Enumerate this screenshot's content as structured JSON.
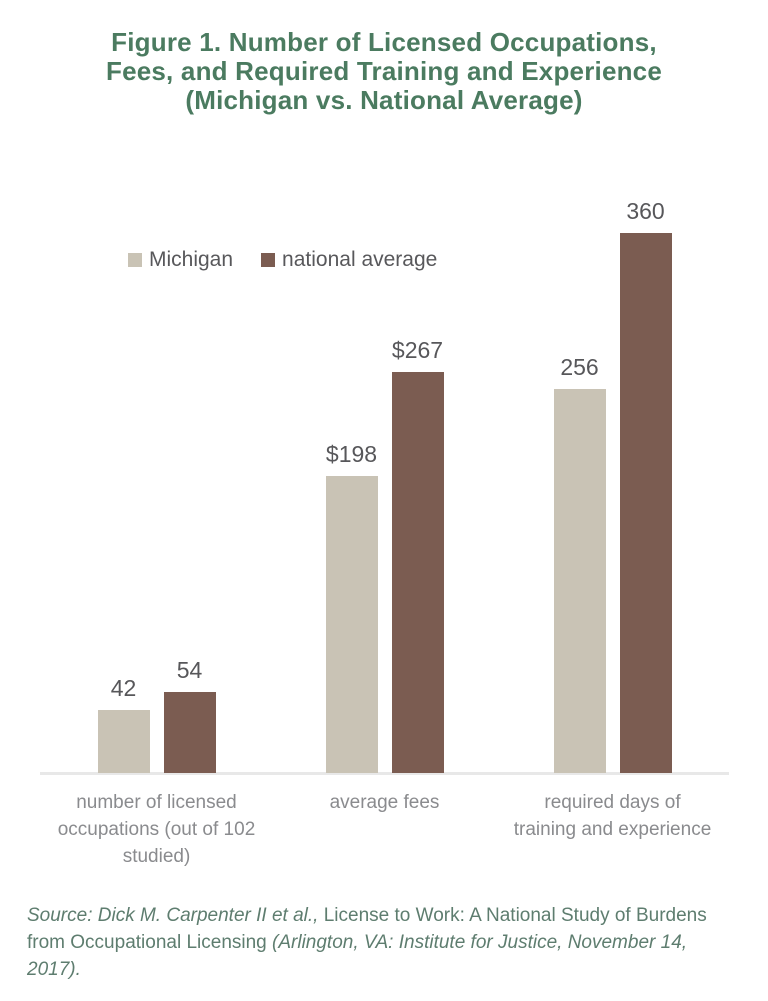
{
  "title": {
    "lines": [
      "Figure 1. Number of Licensed Occupations,",
      "Fees, and Required Training and Experience",
      "(Michigan vs. National Average)"
    ]
  },
  "legend": {
    "items": [
      {
        "label": "Michigan",
        "color": "#c9c3b5"
      },
      {
        "label": "national average",
        "color": "#7b5c51"
      }
    ]
  },
  "chart_data": {
    "type": "bar",
    "title": "Figure 1. Number of Licensed Occupations, Fees, and Required Training and Experience (Michigan vs. National Average)",
    "categories": [
      "number of licensed occupations (out of 102 studied)",
      "average fees",
      "required days of training and experience"
    ],
    "categories_display": [
      "number of licensed\noccupations (out of 102\nstudied)",
      "average fees",
      "required days of\ntraining and experience"
    ],
    "series": [
      {
        "name": "Michigan",
        "color": "#c9c3b5",
        "values": [
          42,
          198,
          256
        ],
        "value_labels": [
          "42",
          "$198",
          "256"
        ]
      },
      {
        "name": "national average",
        "color": "#7b5c51",
        "values": [
          54,
          267,
          360
        ],
        "value_labels": [
          "54",
          "$267",
          "360"
        ]
      }
    ],
    "xlabel": "",
    "ylabel": "",
    "ylim": [
      0,
      360
    ],
    "grid": false,
    "legend_position": "top-left",
    "axis_line_color": "#e8e8e8"
  },
  "colors": {
    "title_green": "#4b7b60",
    "value_label": "#57575a",
    "category_label": "#8a8b8e",
    "source_green": "#5e7d6f"
  },
  "source": {
    "segments": [
      {
        "text": "Source: Dick M. Carpenter II et al., ",
        "italic": true
      },
      {
        "text": "License to Work: A National Study of Burdens from Occupational Licensing ",
        "italic": false
      },
      {
        "text": "(Arlington, VA: Institute for Justice, November 14, 2017).",
        "italic": true
      }
    ]
  }
}
